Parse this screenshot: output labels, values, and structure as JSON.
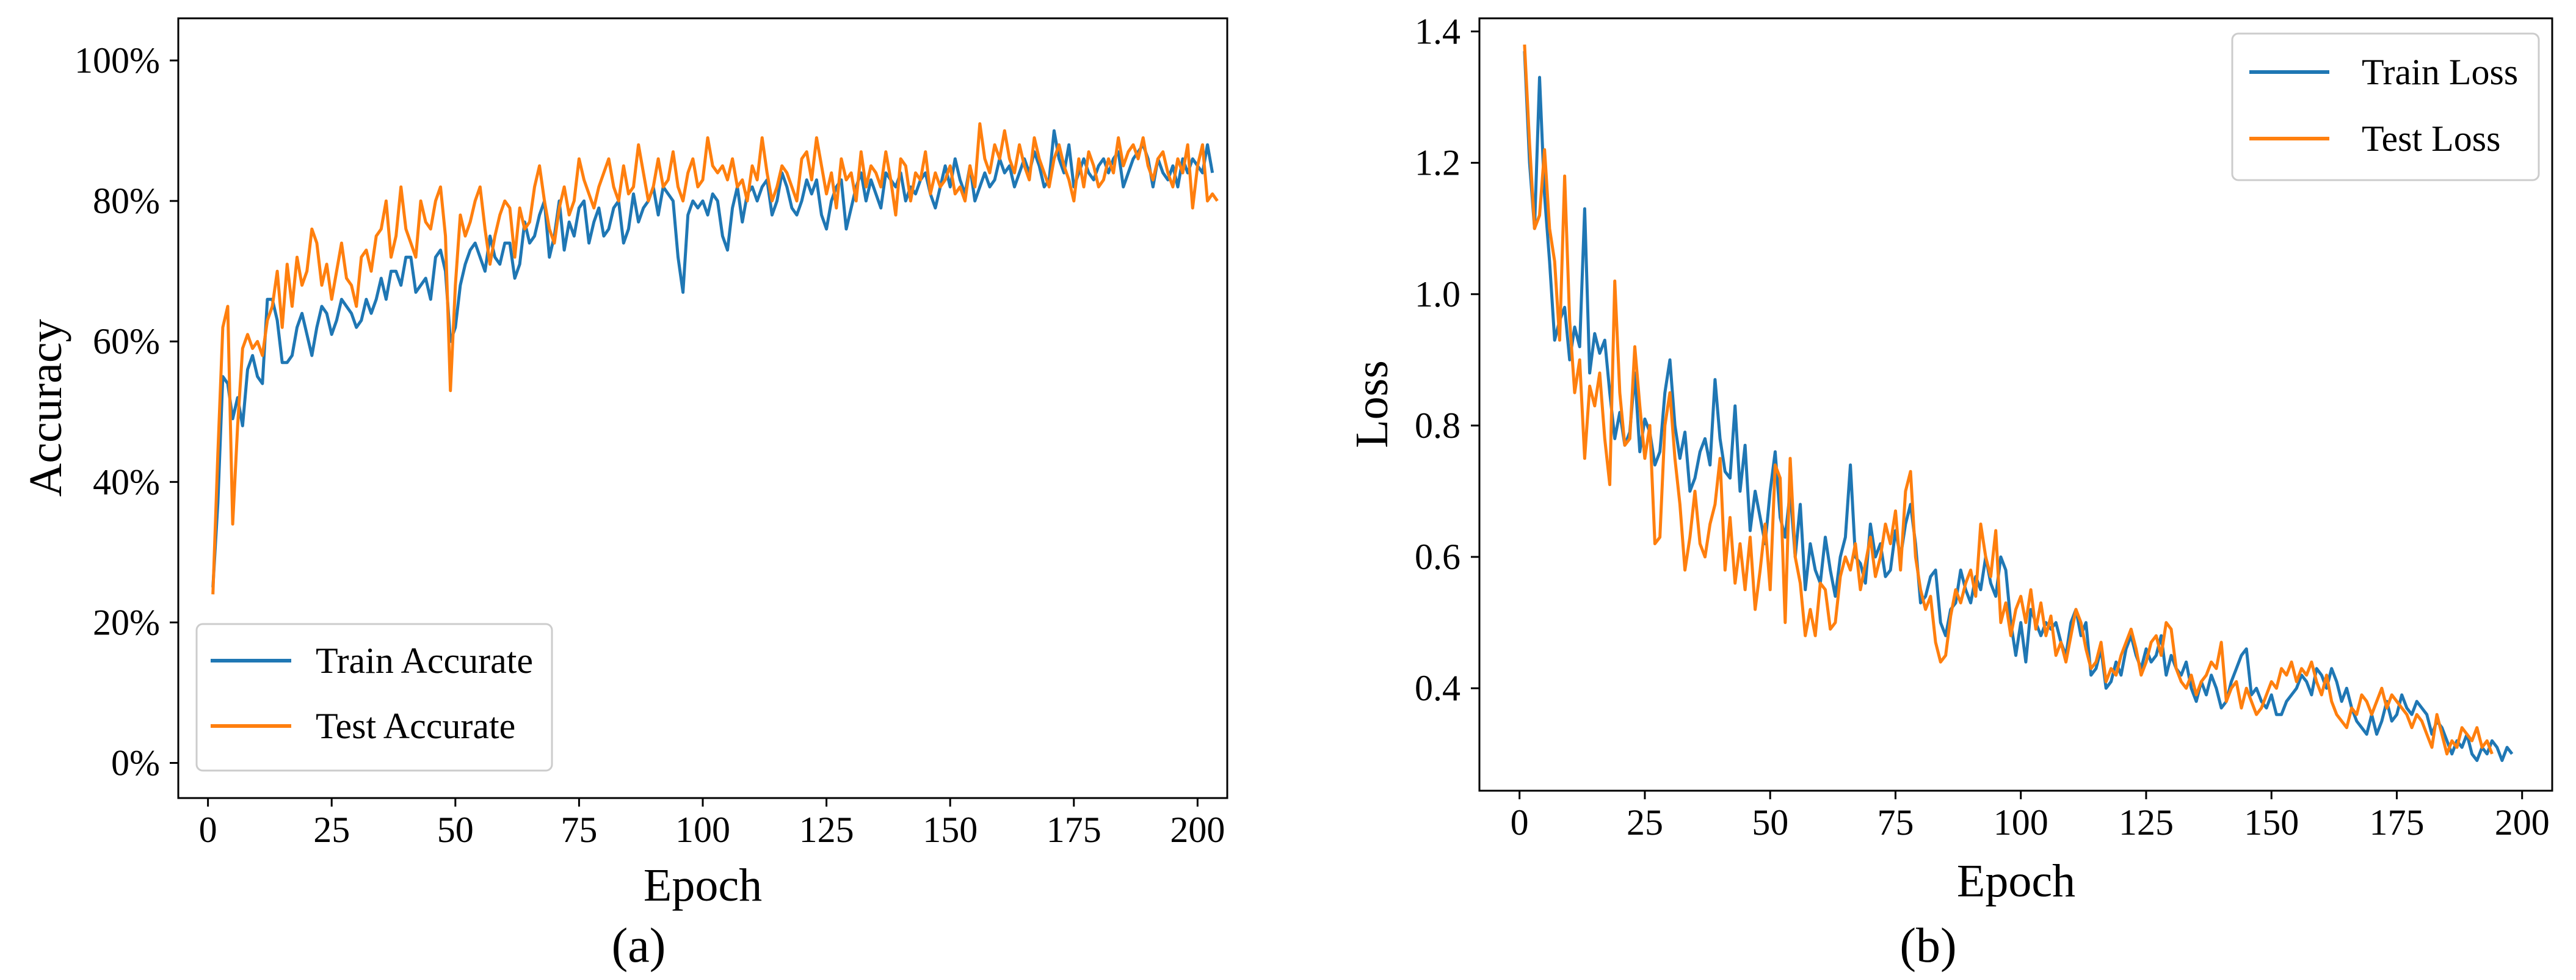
{
  "chart_data": [
    {
      "type": "line",
      "panel_label": "(a)",
      "xlabel": "Epoch",
      "ylabel": "Accuracy",
      "xlim": [
        -6,
        206
      ],
      "ylim": [
        -5,
        106
      ],
      "xticks": [
        0,
        25,
        50,
        75,
        100,
        125,
        150,
        175,
        200
      ],
      "xtick_labels": [
        "0",
        "25",
        "50",
        "75",
        "100",
        "125",
        "150",
        "175",
        "200"
      ],
      "yticks": [
        0,
        20,
        40,
        60,
        80,
        100
      ],
      "ytick_labels": [
        "0%",
        "20%",
        "40%",
        "60%",
        "80%",
        "100%"
      ],
      "y_unit": "percent",
      "grid": false,
      "legend_position": "lower-left",
      "x": {
        "start": 1,
        "end": 200,
        "step": 1
      },
      "series": [
        {
          "name": "Train Accurate",
          "color": "#1f77b4",
          "values": [
            25.0,
            37.0,
            55.0,
            54.0,
            49.0,
            52.0,
            48.0,
            56.0,
            58.0,
            55.0,
            54.0,
            66.0,
            66.0,
            63.0,
            57.0,
            57.0,
            58.0,
            62.0,
            64.0,
            61.0,
            58.0,
            62.0,
            65.0,
            64.0,
            61.0,
            63.0,
            66.0,
            65.0,
            64.0,
            62.0,
            63.0,
            66.0,
            64.0,
            66.0,
            69.0,
            66.0,
            70.0,
            70.0,
            68.0,
            72.0,
            72.0,
            67.0,
            68.0,
            69.0,
            66.0,
            72.0,
            73.0,
            70.0,
            60.0,
            62.0,
            68.0,
            71.0,
            73.0,
            74.0,
            72.0,
            70.0,
            75.0,
            72.0,
            71.0,
            74.0,
            74.0,
            69.0,
            71.0,
            77.0,
            74.0,
            75.0,
            78.0,
            80.0,
            72.0,
            75.0,
            80.0,
            73.0,
            77.0,
            75.0,
            79.0,
            80.0,
            74.0,
            77.0,
            79.0,
            75.0,
            76.0,
            79.0,
            80.0,
            74.0,
            76.0,
            81.0,
            77.0,
            79.0,
            80.0,
            82.0,
            78.0,
            82.0,
            81.0,
            80.0,
            72.0,
            67.0,
            78.0,
            80.0,
            79.0,
            80.0,
            78.0,
            81.0,
            80.0,
            75.0,
            73.0,
            79.0,
            82.0,
            77.0,
            81.0,
            82.0,
            80.0,
            82.0,
            83.0,
            78.0,
            80.0,
            84.0,
            82.0,
            79.0,
            78.0,
            80.0,
            83.0,
            81.0,
            83.0,
            78.0,
            76.0,
            80.0,
            82.0,
            83.0,
            76.0,
            79.0,
            82.0,
            84.0,
            80.0,
            83.0,
            81.0,
            79.0,
            84.0,
            83.0,
            82.0,
            84.0,
            80.0,
            82.0,
            81.0,
            83.0,
            84.0,
            81.0,
            79.0,
            82.0,
            85.0,
            82.0,
            86.0,
            83.0,
            81.0,
            85.0,
            80.0,
            82.0,
            84.0,
            82.0,
            83.0,
            86.0,
            84.0,
            85.0,
            82.0,
            84.0,
            86.0,
            84.0,
            87.0,
            85.0,
            82.0,
            83.0,
            90.0,
            86.0,
            84.0,
            88.0,
            82.0,
            84.0,
            86.0,
            84.0,
            83.0,
            85.0,
            86.0,
            84.0,
            86.0,
            87.0,
            82.0,
            84.0,
            86.0,
            87.0,
            88.0,
            86.0,
            82.0,
            86.0,
            84.0,
            83.0,
            85.0,
            82.0,
            86.0,
            84.0,
            86.0,
            85.0,
            84.0,
            88.0,
            84.0
          ]
        },
        {
          "name": "Test Accurate",
          "color": "#ff7f0e",
          "values": [
            24.0,
            44.0,
            62.0,
            65.0,
            34.0,
            48.0,
            59.0,
            61.0,
            59.0,
            60.0,
            58.0,
            63.0,
            65.0,
            70.0,
            62.0,
            71.0,
            65.0,
            72.0,
            68.0,
            70.0,
            76.0,
            74.0,
            68.0,
            71.0,
            66.0,
            70.0,
            74.0,
            69.0,
            68.0,
            65.0,
            72.0,
            73.0,
            70.0,
            75.0,
            76.0,
            80.0,
            72.0,
            75.0,
            82.0,
            76.0,
            74.0,
            72.0,
            80.0,
            77.0,
            76.0,
            80.0,
            82.0,
            75.0,
            53.0,
            68.0,
            78.0,
            75.0,
            77.0,
            80.0,
            82.0,
            76.0,
            71.0,
            75.0,
            78.0,
            80.0,
            79.0,
            72.0,
            79.0,
            76.0,
            77.0,
            82.0,
            85.0,
            80.0,
            76.0,
            74.0,
            79.0,
            82.0,
            78.0,
            80.0,
            86.0,
            83.0,
            81.0,
            79.0,
            82.0,
            84.0,
            86.0,
            82.0,
            80.0,
            85.0,
            81.0,
            82.0,
            88.0,
            84.0,
            80.0,
            82.0,
            86.0,
            82.0,
            83.0,
            87.0,
            82.0,
            80.0,
            84.0,
            86.0,
            82.0,
            83.0,
            89.0,
            85.0,
            84.0,
            85.0,
            83.0,
            86.0,
            82.0,
            83.0,
            80.0,
            85.0,
            83.0,
            89.0,
            84.0,
            80.0,
            82.0,
            85.0,
            84.0,
            82.0,
            80.0,
            86.0,
            87.0,
            83.0,
            89.0,
            85.0,
            81.0,
            84.0,
            79.0,
            86.0,
            83.0,
            84.0,
            80.0,
            87.0,
            82.0,
            85.0,
            84.0,
            82.0,
            87.0,
            83.0,
            78.0,
            86.0,
            85.0,
            80.0,
            84.0,
            83.0,
            87.0,
            81.0,
            84.0,
            82.0,
            83.0,
            85.0,
            81.0,
            82.0,
            80.0,
            85.0,
            82.0,
            91.0,
            86.0,
            84.0,
            88.0,
            86.0,
            90.0,
            86.0,
            84.0,
            88.0,
            85.0,
            83.0,
            89.0,
            86.0,
            84.0,
            82.0,
            86.0,
            88.0,
            85.0,
            83.0,
            80.0,
            86.0,
            82.0,
            87.0,
            85.0,
            82.0,
            83.0,
            86.0,
            84.0,
            89.0,
            85.0,
            87.0,
            88.0,
            86.0,
            89.0,
            85.0,
            83.0,
            86.0,
            87.0,
            84.0,
            82.0,
            86.0,
            84.0,
            88.0,
            79.0,
            85.0,
            88.0,
            80.0,
            81.0,
            80.0
          ]
        }
      ]
    },
    {
      "type": "line",
      "panel_label": "(b)",
      "xlabel": "Epoch",
      "ylabel": "Loss",
      "xlim": [
        -8,
        206
      ],
      "ylim": [
        0.244,
        1.42
      ],
      "xticks": [
        0,
        25,
        50,
        75,
        100,
        125,
        150,
        175,
        200
      ],
      "xtick_labels": [
        "0",
        "25",
        "50",
        "75",
        "100",
        "125",
        "150",
        "175",
        "200"
      ],
      "yticks": [
        0.4,
        0.6,
        0.8,
        1.0,
        1.2,
        1.4
      ],
      "ytick_labels": [
        "0.4",
        "0.6",
        "0.8",
        "1.0",
        "1.2",
        "1.4"
      ],
      "grid": false,
      "legend_position": "top-right",
      "x": {
        "start": 1,
        "end": 200,
        "step": 1
      },
      "series": [
        {
          "name": "Train Loss",
          "color": "#1f77b4",
          "values": [
            1.37,
            1.2,
            1.1,
            1.33,
            1.15,
            1.05,
            0.93,
            0.96,
            0.98,
            0.9,
            0.95,
            0.92,
            1.13,
            0.88,
            0.94,
            0.91,
            0.93,
            0.85,
            0.78,
            0.82,
            0.77,
            0.79,
            0.88,
            0.76,
            0.81,
            0.79,
            0.74,
            0.76,
            0.85,
            0.9,
            0.8,
            0.75,
            0.79,
            0.7,
            0.72,
            0.76,
            0.78,
            0.74,
            0.87,
            0.78,
            0.73,
            0.72,
            0.83,
            0.7,
            0.77,
            0.64,
            0.7,
            0.66,
            0.62,
            0.7,
            0.76,
            0.66,
            0.63,
            0.7,
            0.6,
            0.68,
            0.55,
            0.62,
            0.58,
            0.56,
            0.63,
            0.58,
            0.54,
            0.6,
            0.63,
            0.74,
            0.6,
            0.59,
            0.56,
            0.65,
            0.6,
            0.62,
            0.57,
            0.58,
            0.64,
            0.6,
            0.65,
            0.68,
            0.62,
            0.53,
            0.54,
            0.57,
            0.58,
            0.5,
            0.48,
            0.52,
            0.53,
            0.58,
            0.55,
            0.53,
            0.57,
            0.55,
            0.6,
            0.56,
            0.54,
            0.6,
            0.58,
            0.5,
            0.45,
            0.5,
            0.44,
            0.52,
            0.5,
            0.48,
            0.5,
            0.49,
            0.5,
            0.47,
            0.45,
            0.5,
            0.52,
            0.48,
            0.5,
            0.42,
            0.43,
            0.46,
            0.4,
            0.41,
            0.44,
            0.42,
            0.46,
            0.48,
            0.45,
            0.43,
            0.46,
            0.44,
            0.45,
            0.48,
            0.42,
            0.45,
            0.43,
            0.42,
            0.44,
            0.4,
            0.38,
            0.41,
            0.39,
            0.42,
            0.4,
            0.37,
            0.38,
            0.41,
            0.43,
            0.45,
            0.46,
            0.39,
            0.4,
            0.38,
            0.37,
            0.39,
            0.36,
            0.36,
            0.38,
            0.39,
            0.4,
            0.42,
            0.41,
            0.39,
            0.43,
            0.42,
            0.4,
            0.43,
            0.41,
            0.38,
            0.4,
            0.37,
            0.35,
            0.34,
            0.33,
            0.36,
            0.33,
            0.35,
            0.38,
            0.35,
            0.36,
            0.39,
            0.37,
            0.36,
            0.38,
            0.37,
            0.36,
            0.33,
            0.35,
            0.34,
            0.32,
            0.3,
            0.32,
            0.31,
            0.33,
            0.3,
            0.29,
            0.31,
            0.3,
            0.32,
            0.31,
            0.29,
            0.31,
            0.3
          ]
        },
        {
          "name": "Test Loss",
          "color": "#ff7f0e",
          "values": [
            1.38,
            1.23,
            1.1,
            1.12,
            1.22,
            1.1,
            1.05,
            0.93,
            1.18,
            0.96,
            0.85,
            0.9,
            0.75,
            0.86,
            0.83,
            0.88,
            0.78,
            0.71,
            1.02,
            0.85,
            0.77,
            0.78,
            0.92,
            0.83,
            0.75,
            0.8,
            0.62,
            0.63,
            0.8,
            0.85,
            0.75,
            0.68,
            0.58,
            0.63,
            0.7,
            0.62,
            0.6,
            0.65,
            0.68,
            0.75,
            0.58,
            0.66,
            0.56,
            0.62,
            0.55,
            0.63,
            0.52,
            0.58,
            0.65,
            0.55,
            0.74,
            0.72,
            0.5,
            0.75,
            0.6,
            0.56,
            0.48,
            0.52,
            0.48,
            0.56,
            0.55,
            0.49,
            0.5,
            0.57,
            0.6,
            0.58,
            0.62,
            0.55,
            0.59,
            0.63,
            0.57,
            0.6,
            0.65,
            0.62,
            0.67,
            0.58,
            0.7,
            0.73,
            0.6,
            0.55,
            0.52,
            0.54,
            0.47,
            0.44,
            0.45,
            0.51,
            0.55,
            0.53,
            0.56,
            0.58,
            0.54,
            0.65,
            0.6,
            0.57,
            0.64,
            0.5,
            0.53,
            0.48,
            0.52,
            0.54,
            0.5,
            0.55,
            0.49,
            0.53,
            0.48,
            0.51,
            0.45,
            0.47,
            0.44,
            0.48,
            0.52,
            0.5,
            0.46,
            0.43,
            0.44,
            0.47,
            0.41,
            0.43,
            0.42,
            0.45,
            0.47,
            0.49,
            0.46,
            0.42,
            0.44,
            0.47,
            0.48,
            0.45,
            0.5,
            0.49,
            0.43,
            0.41,
            0.4,
            0.42,
            0.39,
            0.41,
            0.42,
            0.44,
            0.43,
            0.47,
            0.38,
            0.4,
            0.41,
            0.37,
            0.4,
            0.38,
            0.36,
            0.37,
            0.39,
            0.41,
            0.4,
            0.43,
            0.42,
            0.44,
            0.41,
            0.43,
            0.42,
            0.44,
            0.41,
            0.39,
            0.42,
            0.38,
            0.36,
            0.35,
            0.34,
            0.37,
            0.36,
            0.39,
            0.38,
            0.36,
            0.38,
            0.4,
            0.37,
            0.39,
            0.38,
            0.37,
            0.36,
            0.34,
            0.36,
            0.35,
            0.33,
            0.31,
            0.36,
            0.33,
            0.3,
            0.32,
            0.31,
            0.34,
            0.33,
            0.32,
            0.34,
            0.31,
            0.32,
            0.3
          ]
        }
      ]
    }
  ]
}
